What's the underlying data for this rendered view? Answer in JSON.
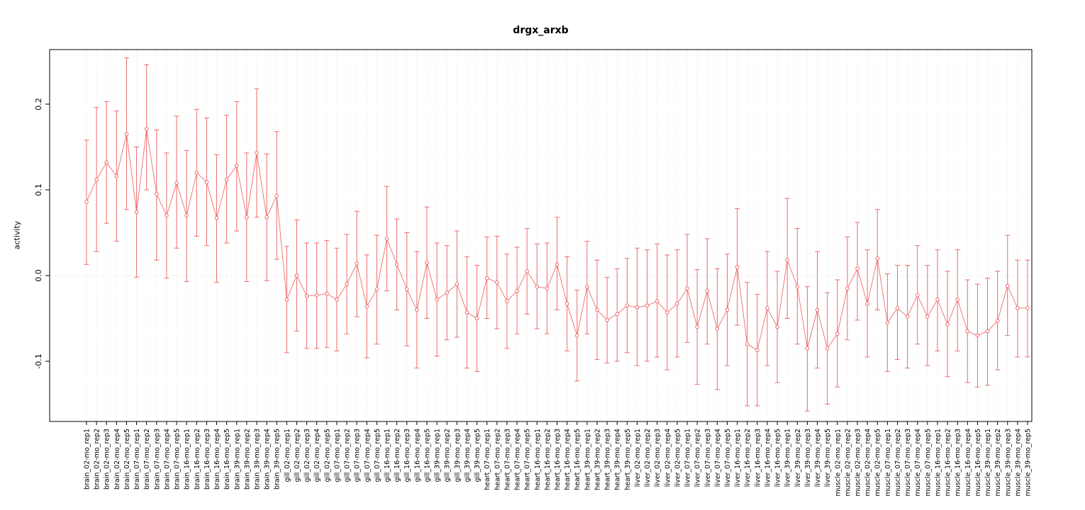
{
  "chart_data": {
    "type": "scatter",
    "title": "drgx_arxb",
    "ylabel": "activity",
    "xlabel": "",
    "ylim": [
      -0.17,
      0.264
    ],
    "yticks": [
      -0.1,
      0.0,
      0.1,
      0.2
    ],
    "ytick_labels": [
      "-0.1",
      "0.0",
      "0.1",
      "0.2"
    ],
    "grid": "vertical-dotted-per-category",
    "zero_line": true,
    "legend": "none",
    "marker": "open-circle",
    "error_bars": true,
    "colors": {
      "series": "#ee6b6b",
      "grid": "#e3e3e3",
      "zero_line": "#d9d9d9",
      "axis": "#000000",
      "background": "#ffffff"
    },
    "categories": [
      "brain_02-mo_rep1",
      "brain_02-mo_rep2",
      "brain_02-mo_rep3",
      "brain_02-mo_rep4",
      "brain_02-mo_rep5",
      "brain_07-mo_rep1",
      "brain_07-mo_rep2",
      "brain_07-mo_rep3",
      "brain_07-mo_rep4",
      "brain_07-mo_rep5",
      "brain_16-mo_rep1",
      "brain_16-mo_rep2",
      "brain_16-mo_rep3",
      "brain_16-mo_rep4",
      "brain_16-mo_rep5",
      "brain_39-mo_rep1",
      "brain_39-mo_rep2",
      "brain_39-mo_rep3",
      "brain_39-mo_rep4",
      "brain_39-mo_rep5",
      "gill_02-mo_rep1",
      "gill_02-mo_rep2",
      "gill_02-mo_rep3",
      "gill_02-mo_rep4",
      "gill_02-mo_rep5",
      "gill_07-mo_rep1",
      "gill_07-mo_rep2",
      "gill_07-mo_rep3",
      "gill_07-mo_rep4",
      "gill_07-mo_rep5",
      "gill_16-mo_rep1",
      "gill_16-mo_rep2",
      "gill_16-mo_rep3",
      "gill_16-mo_rep4",
      "gill_16-mo_rep5",
      "gill_39-mo_rep1",
      "gill_39-mo_rep2",
      "gill_39-mo_rep3",
      "gill_39-mo_rep4",
      "gill_39-mo_rep5",
      "heart_07-mo_rep1",
      "heart_07-mo_rep2",
      "heart_07-mo_rep3",
      "heart_07-mo_rep4",
      "heart_07-mo_rep5",
      "heart_16-mo_rep1",
      "heart_16-mo_rep2",
      "heart_16-mo_rep3",
      "heart_16-mo_rep4",
      "heart_16-mo_rep5",
      "heart_39-mo_rep1",
      "heart_39-mo_rep2",
      "heart_39-mo_rep3",
      "heart_39-mo_rep4",
      "heart_39-mo_rep5",
      "liver_02-mo_rep1",
      "liver_02-mo_rep2",
      "liver_02-mo_rep3",
      "liver_02-mo_rep4",
      "liver_02-mo_rep5",
      "liver_07-mo_rep1",
      "liver_07-mo_rep2",
      "liver_07-mo_rep3",
      "liver_07-mo_rep4",
      "liver_07-mo_rep5",
      "liver_16-mo_rep1",
      "liver_16-mo_rep2",
      "liver_16-mo_rep3",
      "liver_16-mo_rep4",
      "liver_16-mo_rep5",
      "liver_39-mo_rep1",
      "liver_39-mo_rep2",
      "liver_39-mo_rep3",
      "liver_39-mo_rep4",
      "liver_39-mo_rep5",
      "muscle_02-mo_rep1",
      "muscle_02-mo_rep2",
      "muscle_02-mo_rep3",
      "muscle_02-mo_rep4",
      "muscle_02-mo_rep5",
      "muscle_07-mo_rep1",
      "muscle_07-mo_rep2",
      "muscle_07-mo_rep3",
      "muscle_07-mo_rep4",
      "muscle_07-mo_rep5",
      "muscle_16-mo_rep1",
      "muscle_16-mo_rep2",
      "muscle_16-mo_rep3",
      "muscle_16-mo_rep4",
      "muscle_16-mo_rep5",
      "muscle_39-mo_rep1",
      "muscle_39-mo_rep2",
      "muscle_39-mo_rep3",
      "muscle_39-mo_rep4",
      "muscle_39-mo_rep5"
    ],
    "values": [
      0.086,
      0.112,
      0.132,
      0.116,
      0.165,
      0.074,
      0.171,
      0.095,
      0.07,
      0.108,
      0.07,
      0.12,
      0.109,
      0.067,
      0.112,
      0.128,
      0.068,
      0.143,
      0.068,
      0.093,
      -0.028,
      0.0,
      -0.024,
      -0.023,
      -0.021,
      -0.028,
      -0.01,
      0.014,
      -0.036,
      -0.016,
      0.043,
      0.013,
      -0.016,
      -0.04,
      0.015,
      -0.028,
      -0.02,
      -0.01,
      -0.043,
      -0.05,
      -0.003,
      -0.008,
      -0.03,
      -0.018,
      0.005,
      -0.013,
      -0.015,
      0.013,
      -0.033,
      -0.07,
      -0.013,
      -0.04,
      -0.052,
      -0.045,
      -0.035,
      -0.037,
      -0.035,
      -0.03,
      -0.043,
      -0.033,
      -0.015,
      -0.06,
      -0.018,
      -0.062,
      -0.04,
      0.01,
      -0.08,
      -0.087,
      -0.038,
      -0.06,
      0.018,
      -0.013,
      -0.085,
      -0.04,
      -0.085,
      -0.068,
      -0.015,
      0.008,
      -0.033,
      0.02,
      -0.055,
      -0.038,
      -0.048,
      -0.023,
      -0.048,
      -0.028,
      -0.057,
      -0.028,
      -0.065,
      -0.07,
      -0.065,
      -0.053,
      -0.012,
      -0.038,
      -0.038
    ],
    "err_low": [
      0.013,
      0.028,
      0.061,
      0.04,
      0.077,
      -0.002,
      0.1,
      0.018,
      -0.003,
      0.032,
      -0.007,
      0.046,
      0.035,
      -0.008,
      0.038,
      0.052,
      -0.007,
      0.068,
      -0.006,
      0.019,
      -0.09,
      -0.065,
      -0.085,
      -0.085,
      -0.084,
      -0.088,
      -0.068,
      -0.048,
      -0.096,
      -0.08,
      -0.018,
      -0.04,
      -0.082,
      -0.108,
      -0.05,
      -0.094,
      -0.075,
      -0.072,
      -0.108,
      -0.112,
      -0.05,
      -0.062,
      -0.085,
      -0.068,
      -0.045,
      -0.062,
      -0.068,
      -0.04,
      -0.088,
      -0.123,
      -0.068,
      -0.098,
      -0.102,
      -0.1,
      -0.09,
      -0.105,
      -0.1,
      -0.095,
      -0.11,
      -0.095,
      -0.078,
      -0.127,
      -0.08,
      -0.133,
      -0.105,
      -0.058,
      -0.152,
      -0.152,
      -0.105,
      -0.125,
      -0.05,
      -0.08,
      -0.158,
      -0.108,
      -0.15,
      -0.13,
      -0.075,
      -0.052,
      -0.095,
      -0.04,
      -0.112,
      -0.098,
      -0.108,
      -0.08,
      -0.105,
      -0.088,
      -0.118,
      -0.088,
      -0.125,
      -0.13,
      -0.128,
      -0.11,
      -0.07,
      -0.095,
      -0.095
    ],
    "err_high": [
      0.158,
      0.196,
      0.203,
      0.192,
      0.254,
      0.15,
      0.246,
      0.17,
      0.143,
      0.186,
      0.146,
      0.194,
      0.184,
      0.141,
      0.187,
      0.203,
      0.143,
      0.218,
      0.142,
      0.168,
      0.034,
      0.065,
      0.038,
      0.038,
      0.041,
      0.032,
      0.048,
      0.075,
      0.024,
      0.047,
      0.104,
      0.066,
      0.05,
      0.028,
      0.08,
      0.038,
      0.035,
      0.052,
      0.022,
      0.012,
      0.045,
      0.046,
      0.025,
      0.033,
      0.055,
      0.037,
      0.038,
      0.068,
      0.022,
      -0.017,
      0.04,
      0.018,
      -0.002,
      0.008,
      0.02,
      0.032,
      0.03,
      0.037,
      0.024,
      0.03,
      0.048,
      0.007,
      0.043,
      0.008,
      0.025,
      0.078,
      -0.008,
      -0.022,
      0.028,
      0.005,
      0.09,
      0.055,
      -0.013,
      0.028,
      -0.02,
      -0.005,
      0.045,
      0.062,
      0.03,
      0.077,
      0.002,
      0.012,
      0.012,
      0.035,
      0.012,
      0.03,
      0.005,
      0.03,
      -0.005,
      -0.01,
      -0.003,
      0.005,
      0.047,
      0.018,
      0.018
    ]
  }
}
